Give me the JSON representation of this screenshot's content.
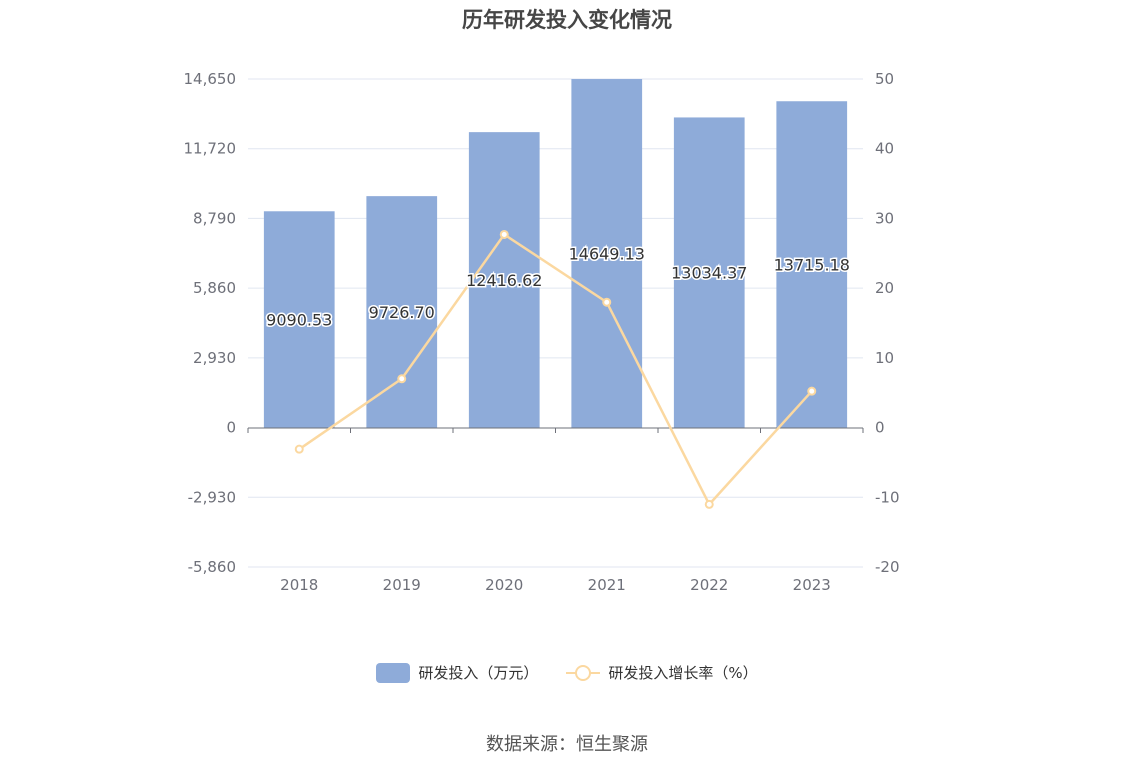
{
  "colors": {
    "bar": "#8eabd9",
    "line": "#fbd8a0",
    "grid": "#e0e6f1",
    "axis": "#6e7079"
  },
  "chart_data": {
    "type": "bar",
    "title": "历年研发投入变化情况",
    "categories": [
      "2018",
      "2019",
      "2020",
      "2021",
      "2022",
      "2023"
    ],
    "series": [
      {
        "name": "研发投入（万元）",
        "type": "bar",
        "axis": "left",
        "values": [
          9090.53,
          9726.7,
          12416.62,
          14649.13,
          13034.37,
          13715.18
        ],
        "labels": [
          "9090.53",
          "9726.70",
          "12416.62",
          "14649.13",
          "13034.37",
          "13715.18"
        ]
      },
      {
        "name": "研发投入增长率（%）",
        "type": "line",
        "axis": "right",
        "values": [
          -3.1,
          7.0,
          27.7,
          17.98,
          -11.02,
          5.22
        ]
      }
    ],
    "y_left": {
      "range": [
        -5860,
        14650
      ],
      "ticks": [
        14650,
        11720,
        8790,
        5860,
        2930,
        0,
        -2930,
        -5860
      ],
      "tick_labels": [
        "14,650",
        "11,720",
        "8,790",
        "5,860",
        "2,930",
        "0",
        "-2,930",
        "-5,860"
      ]
    },
    "y_right": {
      "range": [
        -20,
        50
      ],
      "ticks": [
        50,
        40,
        30,
        20,
        10,
        0,
        -10,
        -20
      ],
      "tick_labels": [
        "50",
        "40",
        "30",
        "20",
        "10",
        "0",
        "-10",
        "-20"
      ]
    },
    "grid": true,
    "legend_position": "bottom"
  },
  "footer": {
    "source": "数据来源：恒生聚源"
  }
}
